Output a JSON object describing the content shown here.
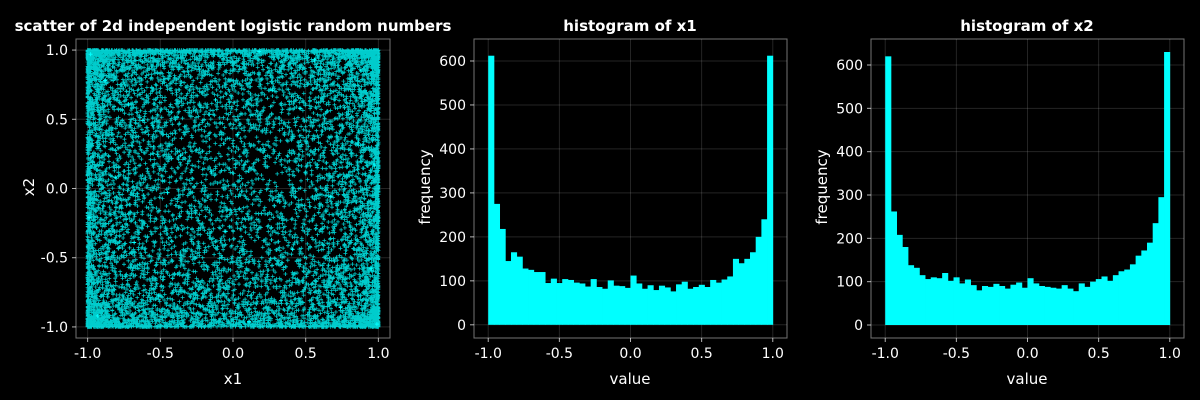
{
  "colors": {
    "background": "#000000",
    "mark": "#00ffff",
    "text": "#ffffff"
  },
  "chart_data": [
    {
      "type": "scatter",
      "title": "scatter of 2d independent logistic random numbers",
      "xlabel": "x1",
      "ylabel": "x2",
      "xlim": [
        -1.08,
        1.08
      ],
      "ylim": [
        -1.08,
        1.08
      ],
      "xticks": [
        -1.0,
        -0.5,
        0.0,
        0.5,
        1.0
      ],
      "xtick_labels": [
        "-1.0",
        "-0.5",
        "0.0",
        "0.5",
        "1.0"
      ],
      "yticks": [
        -1.0,
        -0.5,
        0.0,
        0.5,
        1.0
      ],
      "ytick_labels": [
        "-1.0",
        "-0.5",
        "0.0",
        "0.5",
        "1.0"
      ],
      "grid": true,
      "marker": "+",
      "point_count": 10000,
      "series": [
        {
          "x": [
            -0.98,
            0.99,
            -0.72,
            0.41,
            -0.15,
            0.88,
            -0.51,
            0.03,
            0.67,
            -0.93,
            0.27,
            -0.36,
            0.95,
            -0.81,
            0.56,
            -0.05,
            0.74,
            -0.62,
            0.18,
            -0.99,
            0.86,
            -0.24,
            0.46,
            -0.88,
            0.11,
            -0.45,
            0.97,
            -0.68,
            0.33,
            -0.12
          ],
          "y": [
            0.97,
            -0.98,
            0.61,
            -0.44,
            0.12,
            0.85,
            -0.77,
            0.39,
            -0.06,
            -0.92,
            0.71,
            0.24,
            -0.58,
            0.08,
            0.93,
            -0.31,
            -0.86,
            0.49,
            0.99,
            -0.21,
            0.33,
            -0.67,
            0.58,
            0.78,
            -0.96,
            -0.03,
            0.17,
            -0.39,
            -0.81,
            0.64
          ]
        }
      ]
    },
    {
      "type": "bar",
      "title": "histogram of x1",
      "xlabel": "value",
      "ylabel": "frequency",
      "xlim": [
        -1.1,
        1.1
      ],
      "ylim": [
        -30,
        650
      ],
      "xticks": [
        -1.0,
        -0.5,
        0.0,
        0.5,
        1.0
      ],
      "xtick_labels": [
        "-1.0",
        "-0.5",
        "0.0",
        "0.5",
        "1.0"
      ],
      "yticks": [
        0,
        100,
        200,
        300,
        400,
        500,
        600
      ],
      "ytick_labels": [
        "0",
        "100",
        "200",
        "300",
        "400",
        "500",
        "600"
      ],
      "grid": true,
      "bin_edges": [
        -1.0,
        -0.96,
        -0.92,
        -0.88,
        -0.84,
        -0.8,
        -0.76,
        -0.72,
        -0.68,
        -0.64,
        -0.6,
        -0.56,
        -0.52,
        -0.48,
        -0.44,
        -0.4,
        -0.36,
        -0.32,
        -0.28,
        -0.24,
        -0.2,
        -0.16,
        -0.12,
        -0.08,
        -0.04,
        0.0,
        0.04,
        0.08,
        0.12,
        0.16,
        0.2,
        0.24,
        0.28,
        0.32,
        0.36,
        0.4,
        0.44,
        0.48,
        0.52,
        0.56,
        0.6,
        0.64,
        0.68,
        0.72,
        0.76,
        0.8,
        0.84,
        0.88,
        0.92,
        0.96,
        1.0
      ],
      "values": [
        612,
        275,
        218,
        145,
        165,
        155,
        128,
        125,
        120,
        120,
        95,
        105,
        95,
        104,
        102,
        96,
        94,
        87,
        104,
        86,
        82,
        101,
        89,
        88,
        84,
        112,
        94,
        82,
        90,
        79,
        89,
        85,
        76,
        92,
        98,
        82,
        86,
        91,
        86,
        102,
        96,
        103,
        110,
        150,
        140,
        150,
        165,
        200,
        240,
        612
      ]
    },
    {
      "type": "bar",
      "title": "histogram of x2",
      "xlabel": "value",
      "ylabel": "frequency",
      "xlim": [
        -1.1,
        1.1
      ],
      "ylim": [
        -30,
        660
      ],
      "xticks": [
        -1.0,
        -0.5,
        0.0,
        0.5,
        1.0
      ],
      "xtick_labels": [
        "-1.0",
        "-0.5",
        "0.0",
        "0.5",
        "1.0"
      ],
      "yticks": [
        0,
        100,
        200,
        300,
        400,
        500,
        600
      ],
      "ytick_labels": [
        "0",
        "100",
        "200",
        "300",
        "400",
        "500",
        "600"
      ],
      "grid": true,
      "bin_edges": [
        -1.0,
        -0.96,
        -0.92,
        -0.88,
        -0.84,
        -0.8,
        -0.76,
        -0.72,
        -0.68,
        -0.64,
        -0.6,
        -0.56,
        -0.52,
        -0.48,
        -0.44,
        -0.4,
        -0.36,
        -0.32,
        -0.28,
        -0.24,
        -0.2,
        -0.16,
        -0.12,
        -0.08,
        -0.04,
        0.0,
        0.04,
        0.08,
        0.12,
        0.16,
        0.2,
        0.24,
        0.28,
        0.32,
        0.36,
        0.4,
        0.44,
        0.48,
        0.52,
        0.56,
        0.6,
        0.64,
        0.68,
        0.72,
        0.76,
        0.8,
        0.84,
        0.88,
        0.92,
        0.96,
        1.0
      ],
      "values": [
        620,
        262,
        208,
        180,
        138,
        132,
        115,
        106,
        110,
        108,
        120,
        102,
        110,
        96,
        105,
        92,
        80,
        90,
        88,
        95,
        90,
        84,
        93,
        98,
        86,
        108,
        96,
        90,
        88,
        86,
        84,
        92,
        84,
        78,
        96,
        88,
        100,
        106,
        112,
        102,
        115,
        124,
        128,
        140,
        160,
        172,
        190,
        235,
        295,
        630
      ]
    }
  ]
}
